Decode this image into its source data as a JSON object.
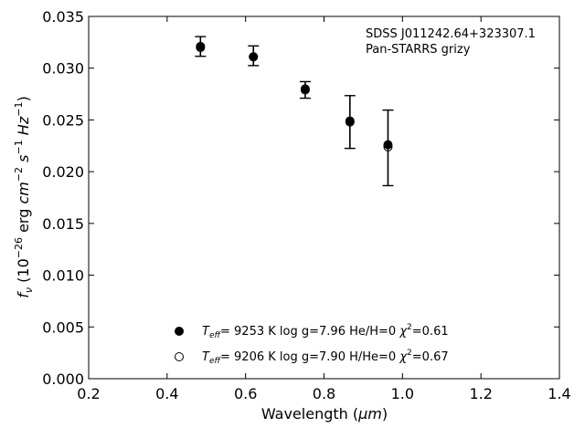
{
  "chart_data": {
    "type": "scatter",
    "xlabel_main": "Wavelength (",
    "xlabel_unit": "μm",
    "xlabel_end": ")",
    "ylabel_f": "f",
    "ylabel_sub": "ν",
    "ylabel_open": " (10",
    "ylabel_exp1": "−26",
    "ylabel_erg": " erg ",
    "ylabel_cm": "cm",
    "ylabel_exp2": "−2",
    "ylabel_s": "s",
    "ylabel_exp3": "−1",
    "ylabel_hz": "Hz",
    "ylabel_exp4": "−1",
    "ylabel_close": ")",
    "xlim": [
      0.2,
      1.4
    ],
    "ylim": [
      0.0,
      0.035
    ],
    "xticks": [
      0.2,
      0.4,
      0.6,
      0.8,
      1.0,
      1.2,
      1.4
    ],
    "xtick_labels": [
      "0.2",
      "0.4",
      "0.6",
      "0.8",
      "1.0",
      "1.2",
      "1.4"
    ],
    "yticks": [
      0.0,
      0.005,
      0.01,
      0.015,
      0.02,
      0.025,
      0.03,
      0.035
    ],
    "ytick_labels": [
      "0.000",
      "0.005",
      "0.010",
      "0.015",
      "0.020",
      "0.025",
      "0.030",
      "0.035"
    ],
    "annotation": [
      "SDSS J011242.64+323307.1",
      "Pan-STARRS grizy"
    ],
    "observed": {
      "x": [
        0.485,
        0.62,
        0.752,
        0.866,
        0.963
      ],
      "y": [
        0.0321,
        0.0312,
        0.0279,
        0.0248,
        0.0223
      ],
      "err": [
        0.00095,
        0.00095,
        0.0008,
        0.00255,
        0.00365
      ]
    },
    "series": [
      {
        "marker": "filled",
        "x": [
          0.485,
          0.62,
          0.752,
          0.866,
          0.963
        ],
        "y": [
          0.0321,
          0.0311,
          0.028,
          0.0249,
          0.0226
        ],
        "teff": "9253 K",
        "logg": "log g=7.96",
        "comp": "He/H=0",
        "chi": "=0.61"
      },
      {
        "marker": "open",
        "x": [
          0.485,
          0.62,
          0.752,
          0.866,
          0.963
        ],
        "y": [
          0.032,
          0.0311,
          0.0279,
          0.0248,
          0.0224
        ],
        "teff": "9206 K",
        "logg": "log g=7.90",
        "comp": "H/He=0",
        "chi": "=0.67"
      }
    ],
    "legend_placement": "bottom-center",
    "grid": false
  }
}
